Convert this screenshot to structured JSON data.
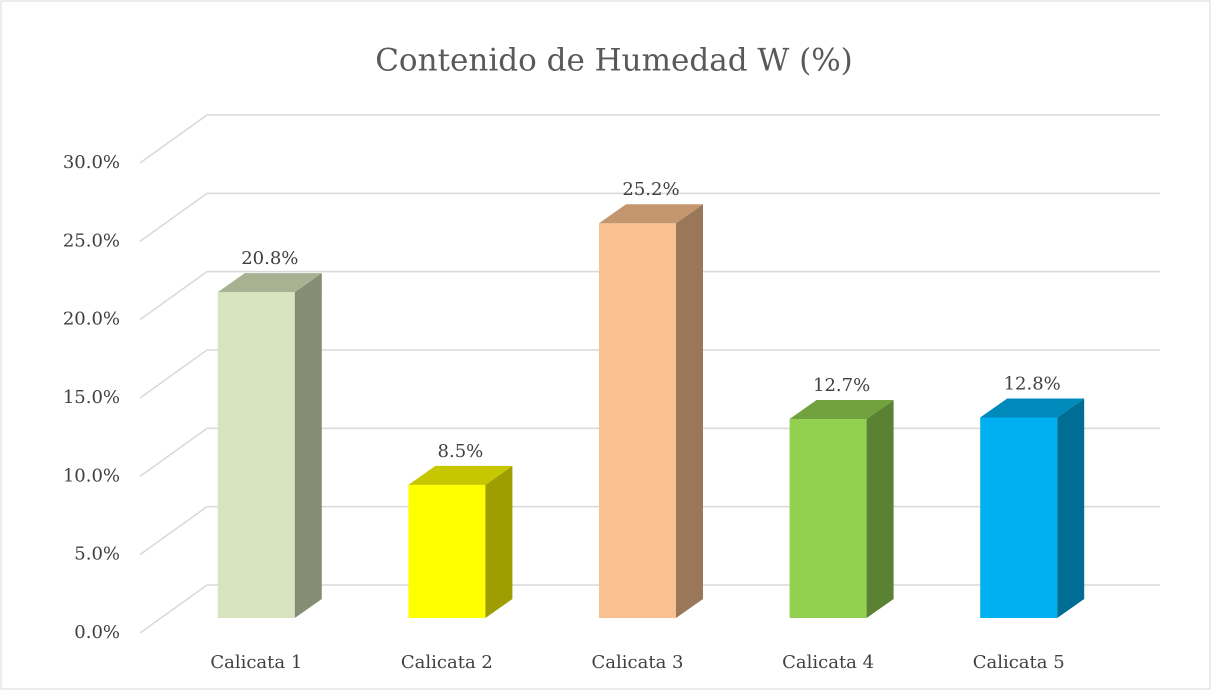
{
  "chart_data": {
    "type": "bar3d",
    "title": "Contenido de Humedad W (%)",
    "categories": [
      "Calicata 1",
      "Calicata 2",
      "Calicata 3",
      "Calicata 4",
      "Calicata 5"
    ],
    "values": [
      20.8,
      8.5,
      25.2,
      12.7,
      12.8
    ],
    "value_labels": [
      "20.8%",
      "8.5%",
      "25.2%",
      "12.7%",
      "12.8%"
    ],
    "colors": [
      "#d7e4bd",
      "#ffff00",
      "#fac090",
      "#92d050",
      "#00b0f0"
    ],
    "ylim": [
      0,
      30
    ],
    "yticks": [
      {
        "value": 0,
        "label": "0.0%"
      },
      {
        "value": 5,
        "label": "5.0%"
      },
      {
        "value": 10,
        "label": "10.0%"
      },
      {
        "value": 15,
        "label": "15.0%"
      },
      {
        "value": 20,
        "label": "20.0%"
      },
      {
        "value": 25,
        "label": "25.0%"
      },
      {
        "value": 30,
        "label": "30.0%"
      }
    ],
    "grid": true
  }
}
